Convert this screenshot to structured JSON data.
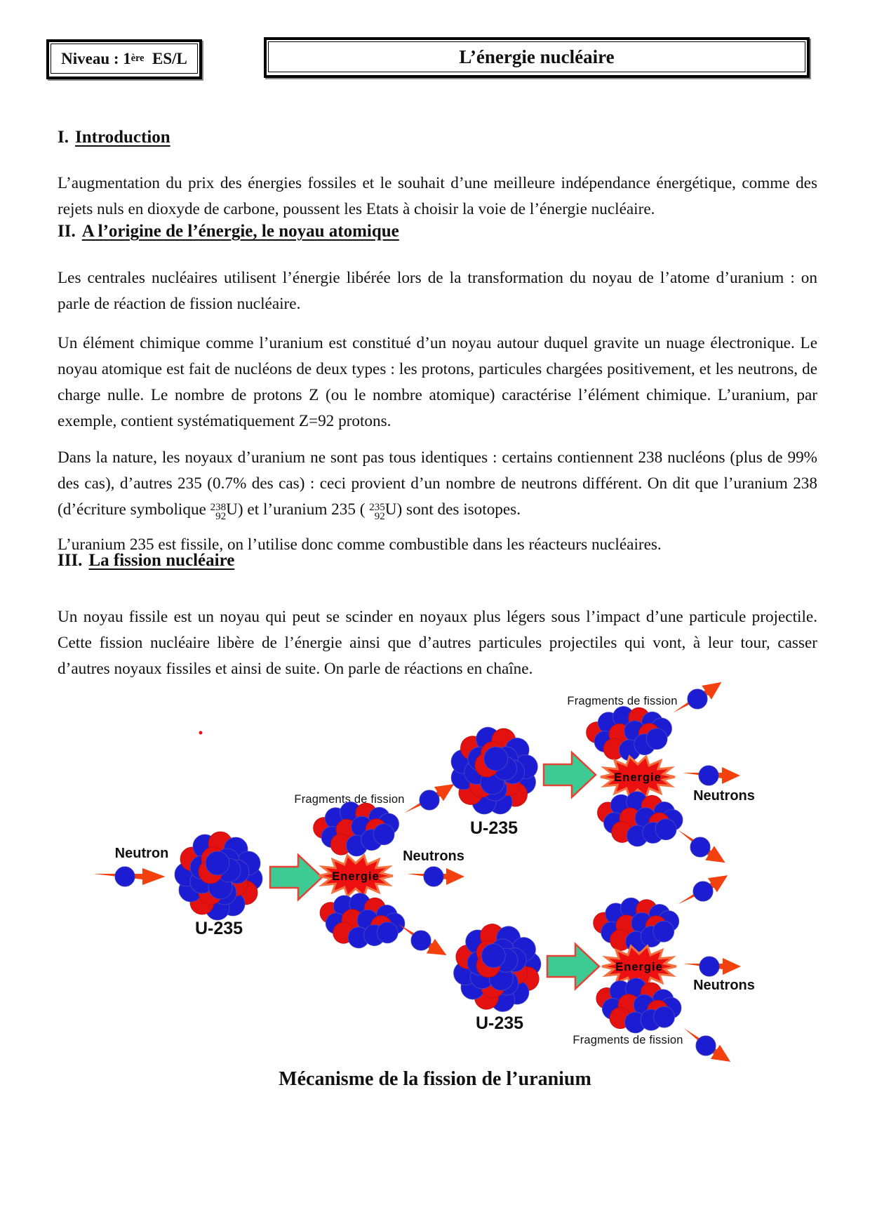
{
  "header": {
    "level_prefix": "Niveau : 1",
    "level_sup": "ère",
    "level_suffix": "  ES/L",
    "title": "L’énergie nucléaire"
  },
  "sections": {
    "one": {
      "num": "I.",
      "title": "Introduction"
    },
    "two": {
      "num": "II.",
      "title": "A l’origine de l’énergie, le noyau atomique"
    },
    "three": {
      "num": "III.",
      "title": "La fission nucléaire"
    }
  },
  "paragraphs": {
    "p1": "L’augmentation du prix des énergies fossiles et le souhait d’une meilleure indépendance énergétique, comme des rejets nuls en dioxyde de carbone, poussent les Etats à choisir la voie de l’énergie nucléaire.",
    "p2": "Les centrales nucléaires utilisent l’énergie libérée lors de la transformation du noyau de l’atome d’uranium : on parle de réaction de fission nucléaire.",
    "p3": "Un élément chimique comme l’uranium est constitué d’un noyau autour duquel gravite un nuage électronique. Le noyau atomique est fait de nucléons de deux types : les protons, particules chargées positivement, et les neutrons, de charge nulle. Le nombre de protons Z (ou le nombre atomique) caractérise l’élément chimique. L’uranium, par exemple, contient systématiquement Z=92 protons.",
    "p4a": "Dans la nature, les noyaux d’uranium ne sont pas tous identiques : certains contiennent 238 nucléons (plus de 99% des cas), d’autres 235 (0.7% des cas) : ceci provient d’un nombre de neutrons différent. On dit que l’uranium 238 (d’écriture symbolique ",
    "iso1_mass": "238",
    "iso1_z": "92",
    "iso1_sym": "U",
    "p4b": ") et l’uranium 235 ( ",
    "iso2_mass": "235",
    "iso2_z": "92",
    "iso2_sym": "U",
    "p4c": ") sont des isotopes.",
    "p5": "L’uranium 235 est fissile, on l’utilise donc comme combustible dans les réacteurs nucléaires.",
    "p6": "Un noyau fissile est un noyau qui peut se scinder en noyaux plus légers sous l’impact d’une particule projectile. Cette fission nucléaire libère de l’énergie ainsi que d’autres particules projectiles qui vont, à leur tour, casser d’autres noyaux fissiles et ainsi de suite. On parle de réactions en chaîne."
  },
  "figure": {
    "caption": "Mécanisme de la fission de l’uranium",
    "labels": {
      "neutron": "Neutron",
      "neutrons": "Neutrons",
      "u235": "U-235",
      "fragments": "Fragments de fission",
      "energy": "Energie"
    },
    "colors": {
      "nucleon_blue": "#1c1cd2",
      "proton_red": "#e41111",
      "arrow_red": "#f2410e",
      "green_arrow": "#3ecb93",
      "green_arrow_outline": "#e34234",
      "energy_star": "#ec1010"
    }
  }
}
